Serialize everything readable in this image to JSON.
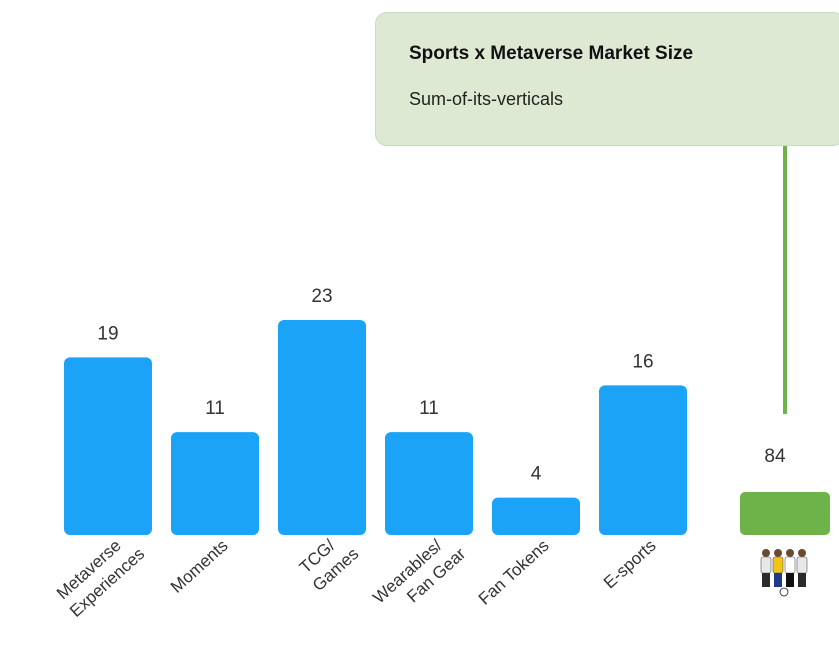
{
  "callout": {
    "title": "Sports x Metaverse Market Size",
    "subtitle": "Sum-of-its-verticals"
  },
  "colors": {
    "bar": "#1aa3f7",
    "total_bar": "#6db34a",
    "callout_bg": "#dde9d3",
    "connector": "#6db34a"
  },
  "total_icon": "sports-players-icon",
  "chart_data": {
    "type": "bar",
    "categories": [
      [
        "Metaverse",
        "Experiences"
      ],
      [
        "Moments"
      ],
      [
        "TCG/",
        "Games"
      ],
      [
        "Wearables/",
        "Fan Gear"
      ],
      [
        "Fan Tokens"
      ],
      [
        "E-sports"
      ]
    ],
    "values": [
      19,
      11,
      23,
      11,
      4,
      16
    ],
    "total": {
      "value": 84
    },
    "title": "",
    "xlabel": "",
    "ylabel": "",
    "grid": false,
    "legend": "none"
  }
}
